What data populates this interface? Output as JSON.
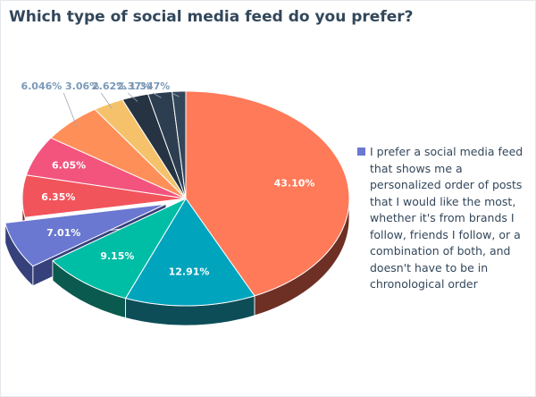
{
  "chart_data": {
    "type": "pie",
    "title": "Which type of social media feed do you prefer?",
    "style": "3d-pie",
    "legend_position": "right",
    "slices": [
      {
        "value": 43.1,
        "label": "43.10%",
        "color": "#ff7a59",
        "side_color": "#6e2f24"
      },
      {
        "value": 12.91,
        "label": "12.91%",
        "color": "#00a4bd",
        "side_color": "#0d4d58"
      },
      {
        "value": 9.15,
        "label": "9.15%",
        "color": "#00bda5",
        "side_color": "#0b5a4f"
      },
      {
        "value": 7.01,
        "label": "7.01%",
        "color": "#6a78d1",
        "side_color": "#36407a",
        "exploded": true
      },
      {
        "value": 6.35,
        "label": "6.35%",
        "color": "#f2545b",
        "side_color": "#7a2a2e"
      },
      {
        "value": 6.05,
        "label": "6.05%",
        "color": "#f2547d",
        "side_color": "#7a2a3f"
      },
      {
        "value": 6.046,
        "label": "6.046%",
        "color": "#ff8f59",
        "side_color": "#7a4424"
      },
      {
        "value": 3.06,
        "label": "3.06%",
        "color": "#f5c26b",
        "side_color": "#7a6135"
      },
      {
        "value": 2.62,
        "label": "2.62%",
        "color": "#253342",
        "side_color": "#141c24"
      },
      {
        "value": 2.37,
        "label": "2.37%",
        "color": "#2d3e50",
        "side_color": "#182230"
      },
      {
        "value": 1.347,
        "label": "1.347%",
        "color": "#33475b",
        "side_color": "#1b2633"
      }
    ],
    "legend": {
      "text": "I prefer a social media feed that shows me a personalized order of posts that I would like the most, whether it's from brands I follow, friends I follow, or a combination of both, and doesn't have to be in chronological order",
      "color": "#6a78d1"
    },
    "label_color_outside": "#7a99b8",
    "label_color_inside": "#ffffff"
  }
}
